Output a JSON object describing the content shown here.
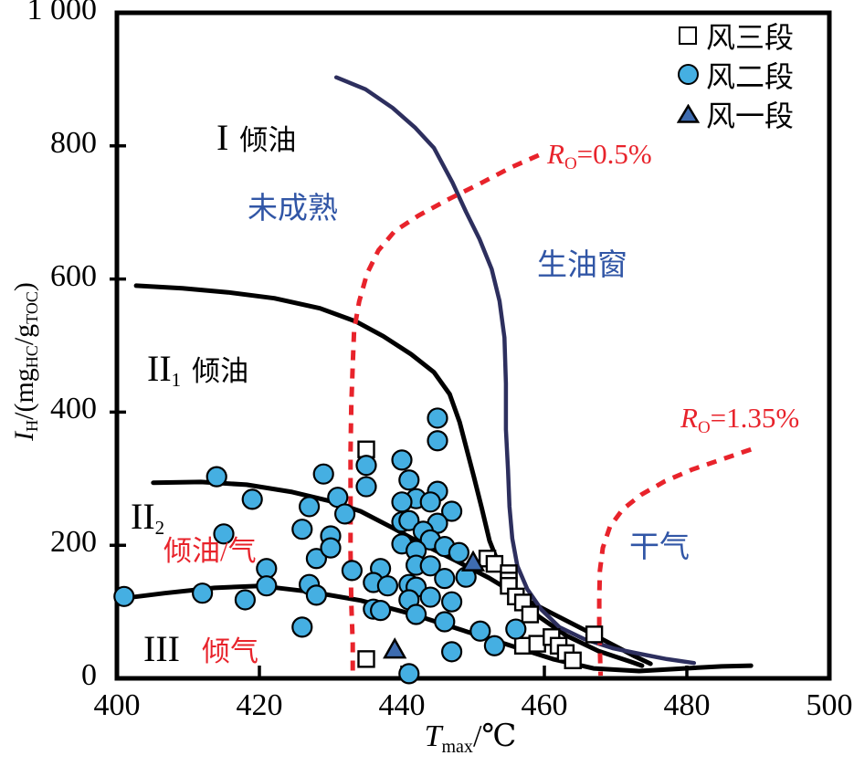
{
  "colors": {
    "circle_fill": "#45AFE2",
    "triangle_fill": "#3E6CB0",
    "navy": "#2D2F5E",
    "red": "#E8232B",
    "blue_text": "#3156A6",
    "black": "#000000"
  },
  "axes": {
    "x_title": {
      "main": "T",
      "sub": "max",
      "unit": "/℃"
    },
    "y_title": {
      "main": "I",
      "sub": "H",
      "part2": "/(mg",
      "sub2": "HC",
      "part3": "/g",
      "sub3": "TOC",
      "part4": ")"
    }
  },
  "chart_data": {
    "type": "scatter",
    "title": "",
    "xlabel": "Tmax/℃",
    "ylabel": "IH/(mgHC/gTOC)",
    "xlim": [
      400,
      500
    ],
    "ylim": [
      0,
      1000
    ],
    "x_ticks": [
      400,
      420,
      440,
      460,
      480,
      500
    ],
    "y_ticks": [
      0,
      200,
      400,
      600,
      800,
      1000
    ],
    "x_tick_labels": [
      "400",
      "420",
      "440",
      "460",
      "480",
      "500"
    ],
    "y_tick_labels": [
      "0",
      "200",
      "400",
      "600",
      "800",
      "1 000"
    ],
    "grid": false,
    "legend_position": "upper right",
    "series": [
      {
        "name": "风三段",
        "marker": "square",
        "fill": "#FFFFFF",
        "points": [
          [
            435,
            344
          ],
          [
            452,
            180
          ],
          [
            453,
            172
          ],
          [
            455,
            158
          ],
          [
            455,
            147
          ],
          [
            455,
            139
          ],
          [
            456,
            123
          ],
          [
            457,
            114
          ],
          [
            458,
            96
          ],
          [
            457,
            49
          ],
          [
            459,
            52
          ],
          [
            461,
            62
          ],
          [
            462,
            49
          ],
          [
            463,
            38
          ],
          [
            464,
            27
          ],
          [
            467,
            66
          ],
          [
            435,
            29
          ]
        ]
      },
      {
        "name": "风二段",
        "marker": "circle",
        "fill": "#45AFE2",
        "points": [
          [
            401,
            123
          ],
          [
            412,
            128
          ],
          [
            418,
            118
          ],
          [
            421,
            165
          ],
          [
            421,
            139
          ],
          [
            414,
            303
          ],
          [
            419,
            269
          ],
          [
            415,
            217
          ],
          [
            426,
            77
          ],
          [
            427,
            258
          ],
          [
            429,
            307
          ],
          [
            431,
            272
          ],
          [
            432,
            247
          ],
          [
            426,
            224
          ],
          [
            428,
            180
          ],
          [
            430,
            214
          ],
          [
            430,
            196
          ],
          [
            427,
            141
          ],
          [
            428,
            125
          ],
          [
            433,
            162
          ],
          [
            445,
            391
          ],
          [
            445,
            357
          ],
          [
            440,
            328
          ],
          [
            435,
            320
          ],
          [
            441,
            298
          ],
          [
            435,
            288
          ],
          [
            445,
            281
          ],
          [
            442,
            270
          ],
          [
            440,
            265
          ],
          [
            444,
            265
          ],
          [
            447,
            251
          ],
          [
            440,
            235
          ],
          [
            441,
            237
          ],
          [
            445,
            233
          ],
          [
            443,
            221
          ],
          [
            444,
            208
          ],
          [
            440,
            202
          ],
          [
            442,
            192
          ],
          [
            446,
            198
          ],
          [
            448,
            189
          ],
          [
            437,
            165
          ],
          [
            442,
            170
          ],
          [
            444,
            169
          ],
          [
            436,
            144
          ],
          [
            438,
            139
          ],
          [
            441,
            141
          ],
          [
            442,
            137
          ],
          [
            446,
            150
          ],
          [
            449,
            152
          ],
          [
            441,
            118
          ],
          [
            444,
            122
          ],
          [
            436,
            104
          ],
          [
            437,
            102
          ],
          [
            442,
            96
          ],
          [
            447,
            115
          ],
          [
            446,
            85
          ],
          [
            451,
            71
          ],
          [
            456,
            74
          ],
          [
            453,
            49
          ],
          [
            447,
            40
          ],
          [
            441,
            7
          ]
        ]
      },
      {
        "name": "风一段",
        "marker": "triangle",
        "fill": "#3E6CB0",
        "points": [
          [
            450,
            174
          ],
          [
            439,
            43
          ]
        ]
      }
    ],
    "curves": [
      {
        "name": "type-I-lower-boundary",
        "color": "#000000",
        "style": "solid",
        "width": 5,
        "points": [
          [
            402.7,
            590
          ],
          [
            409.2,
            586
          ],
          [
            415.6,
            580
          ],
          [
            422.1,
            571
          ],
          [
            428.5,
            556
          ],
          [
            433.6,
            536
          ],
          [
            437.4,
            514
          ],
          [
            441.3,
            487
          ],
          [
            444.5,
            460
          ],
          [
            446.7,
            427
          ],
          [
            448.1,
            385
          ],
          [
            449.1,
            344
          ],
          [
            450.1,
            303
          ],
          [
            451.2,
            256
          ],
          [
            452.3,
            207
          ],
          [
            453.8,
            166
          ],
          [
            456.0,
            128
          ],
          [
            459.2,
            93
          ],
          [
            463.1,
            64
          ],
          [
            467.6,
            41
          ],
          [
            472.1,
            25
          ],
          [
            473.7,
            19
          ]
        ]
      },
      {
        "name": "type-II1-lower-boundary",
        "color": "#000000",
        "style": "solid",
        "width": 5,
        "points": [
          [
            405.1,
            294
          ],
          [
            411.8,
            295
          ],
          [
            418.2,
            291
          ],
          [
            424.6,
            280
          ],
          [
            429.7,
            267
          ],
          [
            434.2,
            251
          ],
          [
            438.7,
            226
          ],
          [
            443.2,
            200
          ],
          [
            447.7,
            176
          ],
          [
            452.2,
            151
          ],
          [
            456.7,
            122
          ],
          [
            461.2,
            97
          ],
          [
            465.6,
            73
          ],
          [
            469.5,
            51
          ],
          [
            472.7,
            33
          ],
          [
            474.9,
            22
          ]
        ]
      },
      {
        "name": "type-II2-lower-boundary",
        "color": "#000000",
        "style": "solid",
        "width": 5,
        "points": [
          [
            400,
            119
          ],
          [
            406.7,
            128
          ],
          [
            413.7,
            136
          ],
          [
            420.1,
            139
          ],
          [
            427.2,
            130
          ],
          [
            434.2,
            117
          ],
          [
            441.3,
            97
          ],
          [
            448.3,
            73
          ],
          [
            454.7,
            51
          ],
          [
            461.2,
            29
          ],
          [
            466.9,
            15
          ],
          [
            473.3,
            11
          ],
          [
            479.7,
            15
          ],
          [
            484.9,
            18
          ],
          [
            489.0,
            19
          ]
        ]
      },
      {
        "name": "oil-window-envelope",
        "color": "#2D2F5E",
        "style": "solid",
        "width": 4.5,
        "points": [
          [
            430.8,
            903
          ],
          [
            434.9,
            885
          ],
          [
            438.7,
            857
          ],
          [
            441.9,
            827
          ],
          [
            444.5,
            797
          ],
          [
            447.1,
            745
          ],
          [
            449.0,
            701
          ],
          [
            450.9,
            660
          ],
          [
            452.6,
            615
          ],
          [
            453.7,
            567
          ],
          [
            454.4,
            512
          ],
          [
            454.6,
            443
          ],
          [
            454.6,
            374
          ],
          [
            454.9,
            313
          ],
          [
            455.1,
            258
          ],
          [
            455.5,
            210
          ],
          [
            456.2,
            169
          ],
          [
            457.6,
            134
          ],
          [
            459.6,
            103
          ],
          [
            462.1,
            77
          ],
          [
            465.6,
            59
          ],
          [
            469.7,
            45
          ],
          [
            473.3,
            37
          ],
          [
            477.2,
            29
          ],
          [
            481.0,
            23
          ]
        ]
      },
      {
        "name": "Ro-0.5-isoline",
        "color": "#E8232B",
        "style": "dashed",
        "width": 5,
        "points": [
          [
            459.2,
            786
          ],
          [
            455.4,
            768
          ],
          [
            450.9,
            743
          ],
          [
            446.4,
            719
          ],
          [
            442.3,
            695
          ],
          [
            439.0,
            672
          ],
          [
            436.7,
            643
          ],
          [
            435.1,
            608
          ],
          [
            434.0,
            566
          ],
          [
            433.3,
            523
          ],
          [
            433.1,
            471
          ],
          [
            432.9,
            409
          ],
          [
            432.8,
            340
          ],
          [
            432.8,
            265
          ],
          [
            432.8,
            189
          ],
          [
            432.9,
            114
          ],
          [
            433.1,
            52
          ],
          [
            433.1,
            4
          ]
        ]
      },
      {
        "name": "Ro-1.35-isoline",
        "color": "#E8232B",
        "style": "dashed",
        "width": 5,
        "points": [
          [
            489.0,
            344
          ],
          [
            484.9,
            329
          ],
          [
            480.8,
            314
          ],
          [
            476.9,
            296
          ],
          [
            473.6,
            276
          ],
          [
            471.0,
            254
          ],
          [
            469.2,
            228
          ],
          [
            468.2,
            196
          ],
          [
            467.8,
            162
          ],
          [
            467.7,
            121
          ],
          [
            467.7,
            80
          ],
          [
            467.8,
            43
          ],
          [
            467.9,
            4
          ]
        ]
      }
    ],
    "annotations": [
      {
        "numeral": "I",
        "text": "倾油",
        "color": "black"
      },
      {
        "text": "未成熟",
        "color": "blue"
      },
      {
        "prefix": "R",
        "sub": "O",
        "value": "=0.5%",
        "color": "red"
      },
      {
        "text": "生油窗",
        "color": "blue"
      },
      {
        "numeral": "II",
        "numeral_sub": "1",
        "text": "倾油",
        "color": "black"
      },
      {
        "numeral": "II",
        "numeral_sub": "2",
        "color": "black"
      },
      {
        "text": "倾油/气",
        "color": "red"
      },
      {
        "prefix": "R",
        "sub": "O",
        "value": "=1.35%",
        "color": "red"
      },
      {
        "text": "干气",
        "color": "blue"
      },
      {
        "numeral": "III",
        "text": "倾气",
        "color": "red"
      }
    ]
  }
}
